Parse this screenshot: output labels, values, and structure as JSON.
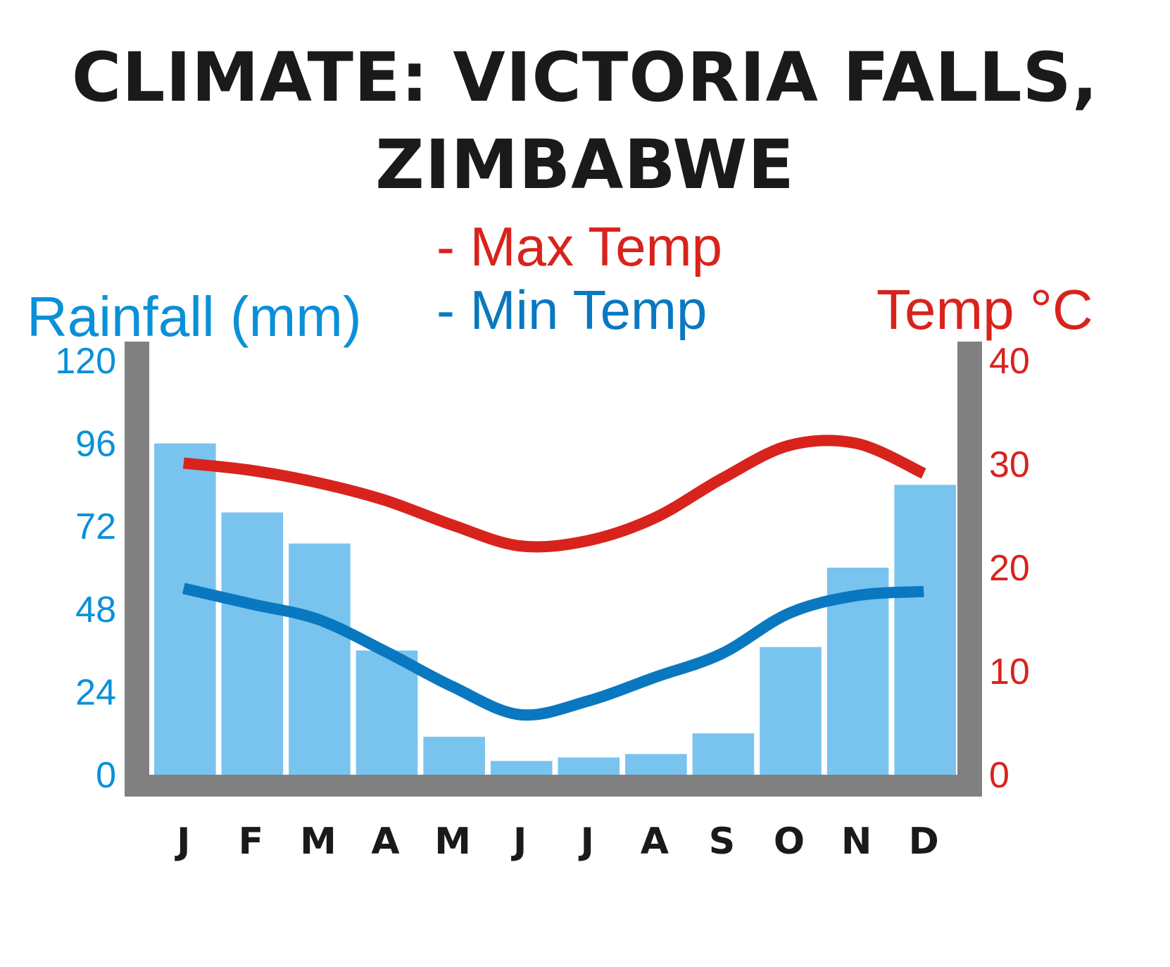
{
  "title": {
    "line1": "CLIMATE: VICTORIA FALLS,",
    "line2": "ZIMBABWE"
  },
  "legend": {
    "rainfall_label": "Rainfall (mm)",
    "max_temp_label": "- Max Temp",
    "min_temp_label": "- Min Temp",
    "temp_axis_label": "Temp °C"
  },
  "colors": {
    "rainfall_bar": "#78c4ee",
    "rainfall_text": "#0a90d8",
    "max_temp": "#d8231c",
    "min_temp": "#0a78c0",
    "axis": "#808080",
    "title": "#1a1a1a"
  },
  "chart_data": {
    "type": "bar+line",
    "title": "CLIMATE: VICTORIA FALLS, ZIMBABWE",
    "categories": [
      "J",
      "F",
      "M",
      "A",
      "M",
      "J",
      "J",
      "A",
      "S",
      "O",
      "N",
      "D"
    ],
    "left_axis": {
      "label": "Rainfall (mm)",
      "ticks": [
        0,
        24,
        48,
        72,
        96,
        120
      ],
      "ylim": [
        0,
        120
      ]
    },
    "right_axis": {
      "label": "Temp °C",
      "ticks": [
        0,
        10,
        20,
        30,
        40
      ],
      "ylim": [
        0,
        40
      ]
    },
    "series": [
      {
        "name": "Rainfall (mm)",
        "type": "bar",
        "axis": "left",
        "values": [
          96,
          76,
          67,
          36,
          11,
          4,
          5,
          6,
          12,
          37,
          60,
          84
        ]
      },
      {
        "name": "Max Temp",
        "type": "line",
        "axis": "right",
        "values": [
          30.1,
          29.4,
          28.2,
          26.5,
          24.1,
          22.1,
          22.6,
          24.8,
          28.6,
          31.8,
          32.0,
          29.1
        ]
      },
      {
        "name": "Min Temp",
        "type": "line",
        "axis": "right",
        "values": [
          18.0,
          16.5,
          15.0,
          11.9,
          8.5,
          5.8,
          7.1,
          9.4,
          11.7,
          15.6,
          17.3,
          17.7
        ]
      }
    ],
    "grid": false,
    "legend_position": "top"
  }
}
